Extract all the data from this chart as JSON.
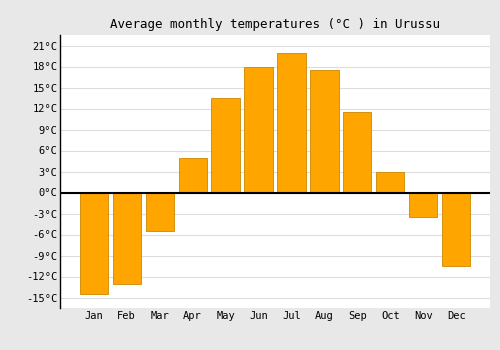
{
  "months": [
    "Jan",
    "Feb",
    "Mar",
    "Apr",
    "May",
    "Jun",
    "Jul",
    "Aug",
    "Sep",
    "Oct",
    "Nov",
    "Dec"
  ],
  "temperatures": [
    -14.5,
    -13,
    -5.5,
    5,
    13.5,
    18,
    20,
    17.5,
    11.5,
    3,
    -3.5,
    -10.5
  ],
  "bar_color": "#FFA500",
  "bar_edge_color": "#CC8800",
  "title": "Average monthly temperatures (°C ) in Urussu",
  "title_fontsize": 9,
  "yticks": [
    -15,
    -12,
    -9,
    -6,
    -3,
    0,
    3,
    6,
    9,
    12,
    15,
    18,
    21
  ],
  "ytick_labels": [
    "-15°C",
    "-12°C",
    "-9°C",
    "-6°C",
    "-3°C",
    "0°C",
    "3°C",
    "6°C",
    "9°C",
    "12°C",
    "15°C",
    "18°C",
    "21°C"
  ],
  "ylim": [
    -16.5,
    22.5
  ],
  "background_color": "#e8e8e8",
  "plot_bg_color": "#ffffff",
  "grid_color": "#dddddd",
  "zero_line_color": "#000000",
  "tick_fontsize": 7.5,
  "bar_width": 0.85
}
